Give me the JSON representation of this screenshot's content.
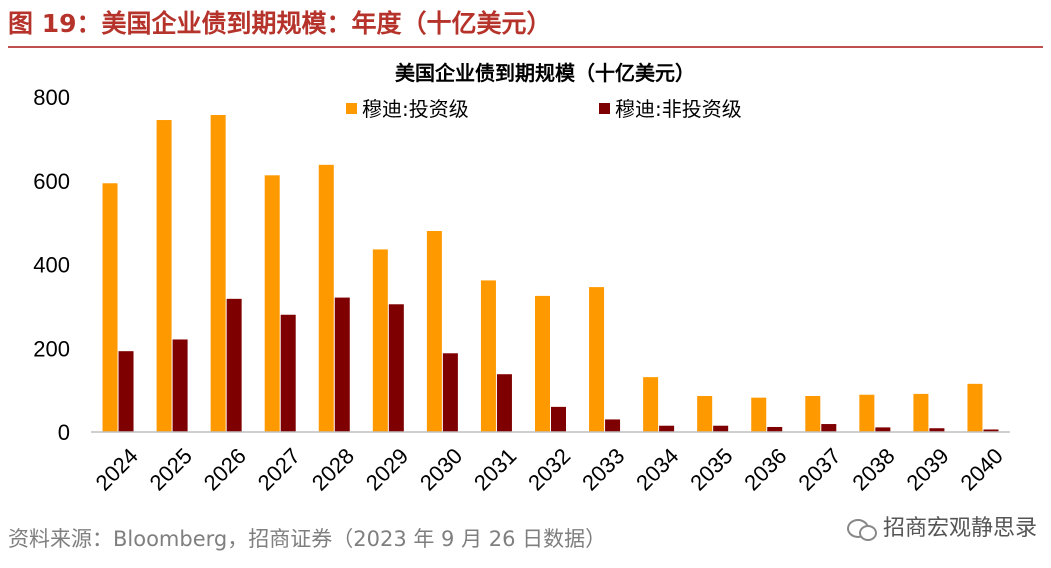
{
  "header": {
    "figure_title": "图 19：美国企业债到期规模：年度（十亿美元）"
  },
  "footer": {
    "source": "资料来源：Bloomberg，招商证券（2023 年 9 月 26 日数据）"
  },
  "watermark": {
    "text": "招商宏观静思录",
    "icon": "wechat-icon"
  },
  "chart_data": {
    "type": "bar",
    "title": "美国企业债到期规模（十亿美元）",
    "xlabel": "",
    "ylabel": "",
    "ylim": [
      0,
      800
    ],
    "yticks": [
      "0",
      "200",
      "400",
      "600",
      "800"
    ],
    "grid": false,
    "legend_position": "top",
    "categories": [
      "2024",
      "2025",
      "2026",
      "2027",
      "2028",
      "2029",
      "2030",
      "2031",
      "2032",
      "2033",
      "2034",
      "2035",
      "2036",
      "2037",
      "2038",
      "2039",
      "2040"
    ],
    "series": [
      {
        "name": "穆迪:投资级",
        "color": "#ff9900",
        "values": [
          594,
          745,
          757,
          613,
          638,
          436,
          480,
          362,
          325,
          346,
          131,
          86,
          82,
          86,
          89,
          91,
          115
        ]
      },
      {
        "name": "穆迪:非投资级",
        "color": "#7f0000",
        "values": [
          193,
          221,
          318,
          280,
          321,
          305,
          188,
          138,
          60,
          30,
          15,
          15,
          12,
          19,
          11,
          9,
          6
        ]
      }
    ]
  }
}
